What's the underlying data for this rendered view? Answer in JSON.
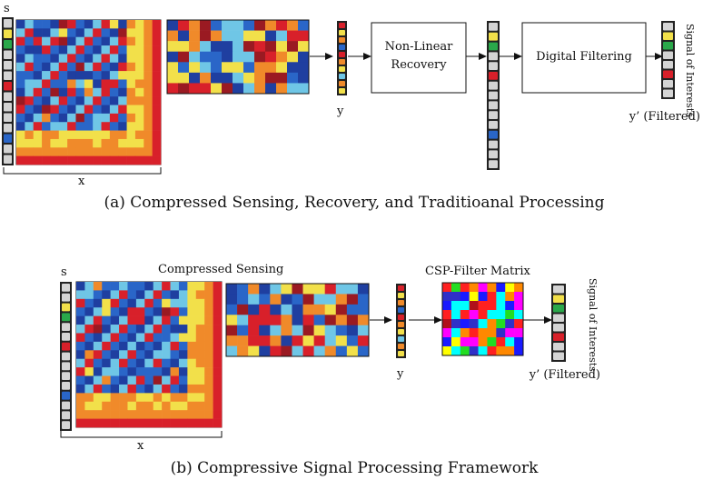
{
  "panel_a": {
    "caption": "(a) Compressed Sensing, Recovery, and Traditioanal Processing",
    "s_label": "s",
    "x_label": "x",
    "y_label": "y",
    "box_nonlinear_line1": "Non-Linear",
    "box_nonlinear_line2": "Recovery",
    "box_filter": "Digital Filtering",
    "yprime_label": "y’ (Filtered)",
    "signal_label": "Signal of Interests"
  },
  "panel_b": {
    "caption": "(b) Compressive Signal Processing Framework",
    "s_label": "s",
    "x_label": "x",
    "y_label": "y",
    "cs_title": "Compressed Sensing",
    "csp_title": "CSP-Filter Matrix",
    "yprime_label": "y’ (Filtered)",
    "signal_label": "Signal of Interests"
  },
  "colors": {
    "dark_blue": "#1f3fa0",
    "blue": "#2a66c8",
    "light_blue": "#6fc6e6",
    "yellow": "#f2e04a",
    "orange": "#f08a2a",
    "red": "#d8202a",
    "dark_red": "#9a1a22",
    "green": "#2aa84a"
  }
}
